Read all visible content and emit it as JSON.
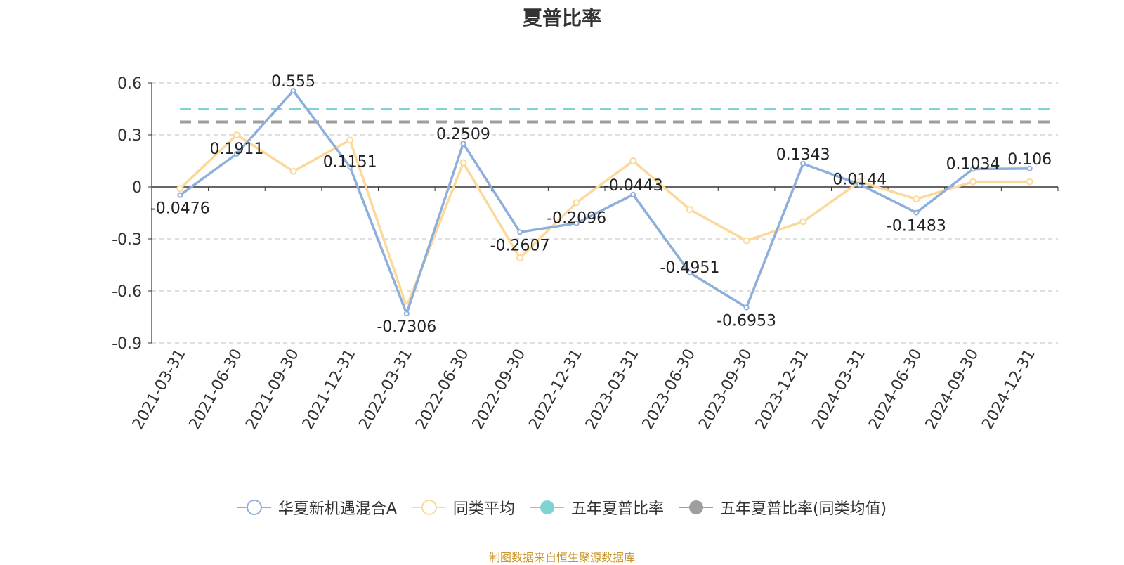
{
  "title": "夏普比率",
  "source_note": "制图数据来自恒生聚源数据库",
  "legend": [
    {
      "label": "华夏新机遇混合A",
      "color": "#8eaedb",
      "marker": "hollow-circle"
    },
    {
      "label": "同类平均",
      "color": "#fcd99a",
      "marker": "hollow-circle"
    },
    {
      "label": "五年夏普比率",
      "color": "#7fd3d3",
      "marker": "filled-circle"
    },
    {
      "label": "五年夏普比率(同类均值)",
      "color": "#9e9e9e",
      "marker": "filled-circle"
    }
  ],
  "chart_data": {
    "type": "line",
    "title": "夏普比率",
    "xlabel": "",
    "ylabel": "",
    "categories": [
      "2021-03-31",
      "2021-06-30",
      "2021-09-30",
      "2021-12-31",
      "2022-03-31",
      "2022-06-30",
      "2022-09-30",
      "2022-12-31",
      "2023-03-31",
      "2023-06-30",
      "2023-09-30",
      "2023-12-31",
      "2024-03-31",
      "2024-06-30",
      "2024-09-30",
      "2024-12-31"
    ],
    "ylim": [
      -0.9,
      0.6
    ],
    "yticks": [
      "0.6",
      "0.3",
      "0",
      "-0.3",
      "-0.6",
      "-0.9"
    ],
    "ytick_values": [
      0.6,
      0.3,
      0,
      -0.3,
      -0.6,
      -0.9
    ],
    "grid": true,
    "legend_position": "bottom",
    "series": [
      {
        "name": "华夏新机遇混合A",
        "color": "#8eaedb",
        "values": [
          -0.0476,
          0.1911,
          0.555,
          0.1151,
          -0.7306,
          0.2509,
          -0.2607,
          -0.2096,
          -0.0443,
          -0.4951,
          -0.6953,
          0.1343,
          0.0144,
          -0.1483,
          0.1034,
          0.106
        ],
        "labels": [
          "-0.0476",
          "0.1911",
          "0.555",
          "0.1151",
          "-0.7306",
          "0.2509",
          "-0.2607",
          "-0.2096",
          "-0.0443",
          "-0.4951",
          "-0.6953",
          "0.1343",
          "0.0144",
          "-0.1483",
          "0.1034",
          "0.106"
        ]
      },
      {
        "name": "同类平均",
        "color": "#fcd99a",
        "values": [
          -0.01,
          0.3,
          0.09,
          0.27,
          -0.69,
          0.14,
          -0.41,
          -0.09,
          0.15,
          -0.13,
          -0.31,
          -0.2,
          0.03,
          -0.07,
          0.03,
          0.03
        ]
      }
    ],
    "reference_lines": [
      {
        "name": "五年夏普比率",
        "color": "#7fd3d3",
        "value": 0.45
      },
      {
        "name": "五年夏普比率(同类均值)",
        "color": "#9e9e9e",
        "value": 0.375
      }
    ]
  }
}
